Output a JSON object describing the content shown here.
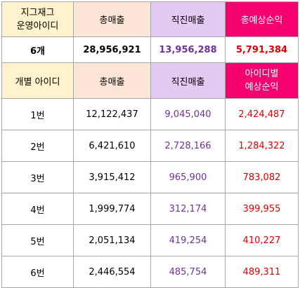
{
  "header": {
    "col1_line1": "지그재그",
    "col1_line2": "운영아이디",
    "col2": "총매출",
    "col3": "직진매출",
    "col4": "총예상순익"
  },
  "total_row": {
    "count": "6개",
    "total_sales": "28,956,921",
    "direct_sales": "13,956,288",
    "expected_profit": "5,791,384"
  },
  "subheader": {
    "col1": "개별 아이디",
    "col2": "총매출",
    "col3": "직진매출",
    "col4_line1": "아이디별",
    "col4_line2": "예상순익"
  },
  "rows": [
    {
      "id": "1번",
      "total_sales": "12,122,437",
      "direct_sales": "9,045,040",
      "expected_profit": "2,424,487"
    },
    {
      "id": "2번",
      "total_sales": "6,421,610",
      "direct_sales": "2,728,166",
      "expected_profit": "1,284,322"
    },
    {
      "id": "3번",
      "total_sales": "3,915,412",
      "direct_sales": "965,900",
      "expected_profit": "783,082"
    },
    {
      "id": "4번",
      "total_sales": "1,999,774",
      "direct_sales": "312,174",
      "expected_profit": "399,955"
    },
    {
      "id": "5번",
      "total_sales": "2,051,134",
      "direct_sales": "419,254",
      "expected_profit": "410,227"
    },
    {
      "id": "6번",
      "total_sales": "2,446,554",
      "direct_sales": "485,754",
      "expected_profit": "489,311"
    }
  ],
  "colors": {
    "header_yellow": "#fff2cc",
    "header_peach": "#fce4d6",
    "header_lilac": "#e4c9f2",
    "header_pink": "#f5006e",
    "direct_sales_text": "#7030a0",
    "profit_text": "#e00000"
  }
}
